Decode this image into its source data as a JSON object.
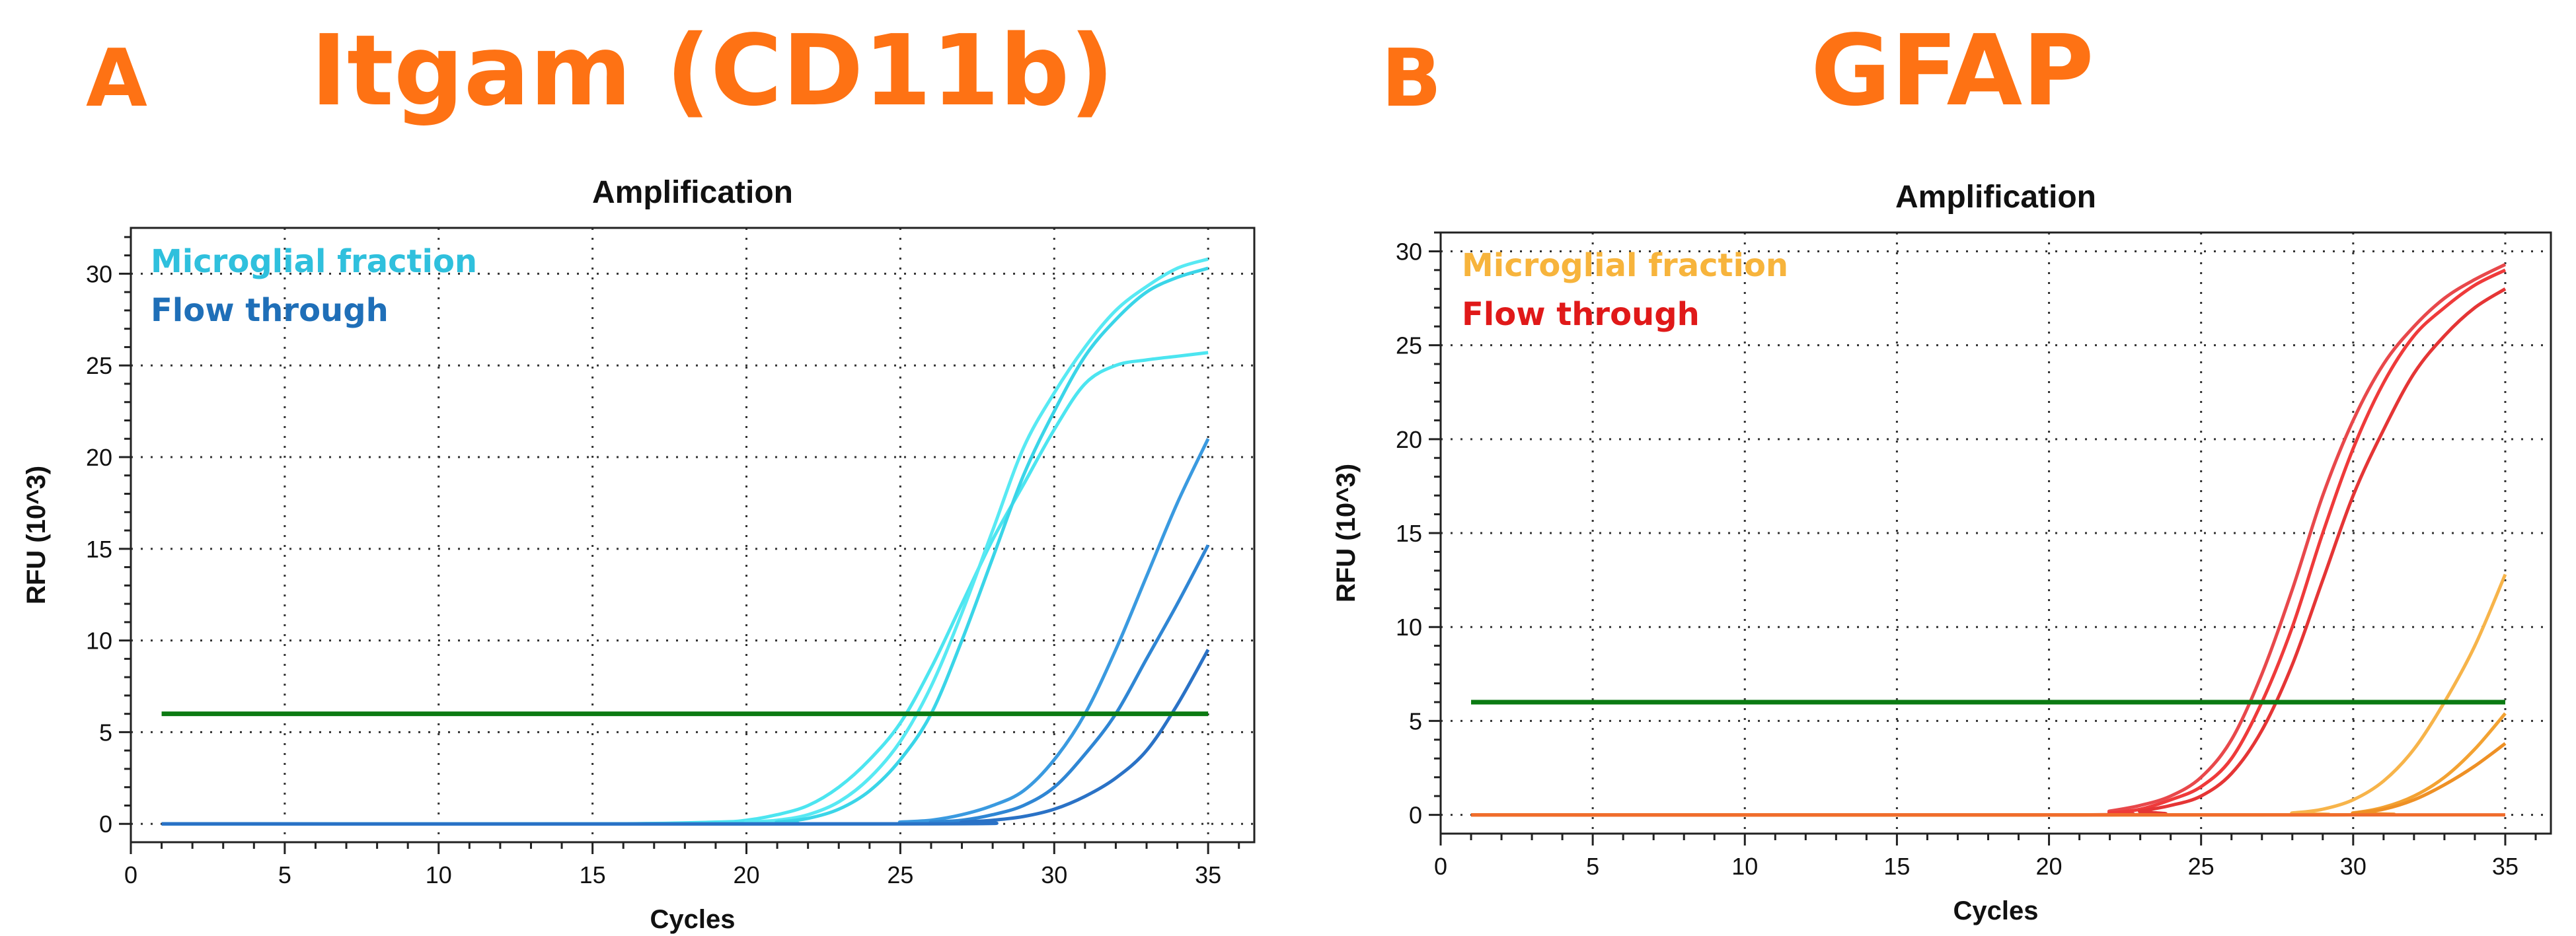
{
  "panels": [
    {
      "letter": "A",
      "title": "Itgam (CD11b)",
      "title_color": "#fe7214",
      "chart_data": {
        "type": "line",
        "title": "Amplification",
        "xlabel": "Cycles",
        "ylabel": "RFU (10^3)",
        "xlim": [
          0,
          36.5
        ],
        "ylim": [
          -1,
          32.5
        ],
        "xticks": [
          0,
          5,
          10,
          15,
          20,
          25,
          30,
          35
        ],
        "yticks": [
          0,
          5,
          10,
          15,
          20,
          25,
          30
        ],
        "grid": true,
        "threshold": {
          "value": 6,
          "x": [
            1,
            35
          ],
          "color": "#0b7a12"
        },
        "legend": [
          {
            "label": "Microglial fraction",
            "color": "#2fc0dd"
          },
          {
            "label": "Flow through",
            "color": "#1f6fb8"
          }
        ],
        "series": [
          {
            "group": 0,
            "color": "#4ce5f0",
            "x": [
              1,
              15,
              19,
              20,
              21,
              22,
              23,
              24,
              25,
              26,
              27,
              28,
              29,
              30,
              31,
              32,
              33,
              34,
              35
            ],
            "y": [
              0,
              0,
              0.1,
              0.2,
              0.5,
              1,
              2,
              3.5,
              5.5,
              8.5,
              12,
              15.5,
              18.5,
              21.5,
              24,
              25,
              25.3,
              25.5,
              25.7
            ]
          },
          {
            "group": 0,
            "color": "#57e9f3",
            "x": [
              1,
              19,
              20,
              21,
              22,
              23,
              24,
              25,
              26,
              27,
              28,
              29,
              30,
              31,
              32,
              33,
              34,
              35
            ],
            "y": [
              0,
              0,
              0.1,
              0.2,
              0.5,
              1.2,
              2.5,
              4.5,
              7.5,
              11.5,
              16,
              20.5,
              23.5,
              26,
              28,
              29.3,
              30.3,
              30.8
            ]
          },
          {
            "group": 0,
            "color": "#3ad5e8",
            "x": [
              1,
              20,
              21,
              22,
              23,
              24,
              25,
              26,
              27,
              28,
              29,
              30,
              31,
              32,
              33,
              34,
              35
            ],
            "y": [
              0,
              0,
              0.1,
              0.3,
              0.8,
              1.8,
              3.5,
              6,
              10,
              14.5,
              19,
              22.5,
              25.5,
              27.5,
              29,
              29.8,
              30.3
            ]
          },
          {
            "group": 1,
            "color": "#3a9ae0",
            "x": [
              1,
              24,
              25,
              26,
              27,
              28,
              29,
              30,
              31,
              32,
              33,
              34,
              35
            ],
            "y": [
              0,
              0,
              0.1,
              0.2,
              0.5,
              1,
              1.8,
              3.5,
              6,
              9.5,
              13.5,
              17.5,
              21
            ]
          },
          {
            "group": 1,
            "color": "#2f86d4",
            "x": [
              1,
              25,
              26,
              27,
              28,
              29,
              30,
              31,
              32,
              33,
              34,
              35
            ],
            "y": [
              0,
              0,
              0.1,
              0.2,
              0.5,
              1,
              2,
              3.8,
              6,
              9,
              12,
              15.2
            ]
          },
          {
            "group": 1,
            "color": "#2a72c6",
            "x": [
              1,
              26,
              27,
              28,
              29,
              30,
              31,
              32,
              33,
              34,
              35
            ],
            "y": [
              0,
              0,
              0.1,
              0.2,
              0.4,
              0.8,
              1.5,
              2.5,
              4,
              6.5,
              9.5
            ]
          }
        ]
      }
    },
    {
      "letter": "B",
      "title": "GFAP",
      "title_color": "#fe7214",
      "chart_data": {
        "type": "line",
        "title": "Amplification",
        "xlabel": "Cycles",
        "ylabel": "RFU (10^3)",
        "xlim": [
          0,
          36.5
        ],
        "ylim": [
          -1,
          31
        ],
        "xticks": [
          0,
          5,
          10,
          15,
          20,
          25,
          30,
          35
        ],
        "yticks": [
          0,
          5,
          10,
          15,
          20,
          25,
          30
        ],
        "grid": true,
        "threshold": {
          "value": 6,
          "x": [
            1,
            35
          ],
          "color": "#0b7a12"
        },
        "legend": [
          {
            "label": "Microglial fraction",
            "color": "#f7b43c"
          },
          {
            "label": "Flow through",
            "color": "#e01919"
          }
        ],
        "series": [
          {
            "group": 1,
            "color": "#e8484b",
            "x": [
              1,
              21,
              22,
              23,
              24,
              25,
              26,
              27,
              28,
              29,
              30,
              31,
              32,
              33,
              34,
              35
            ],
            "y": [
              0,
              0,
              0.2,
              0.5,
              1,
              2,
              4,
              7.5,
              12,
              17,
              21,
              24,
              26,
              27.5,
              28.5,
              29.3
            ]
          },
          {
            "group": 1,
            "color": "#ef3a3a",
            "x": [
              1,
              21,
              22,
              23,
              24,
              25,
              26,
              27,
              28,
              29,
              30,
              31,
              32,
              33,
              34,
              35
            ],
            "y": [
              0,
              0,
              0.1,
              0.3,
              0.8,
              1.5,
              3,
              6,
              10,
              15,
              19.5,
              23,
              25.5,
              27,
              28.2,
              29
            ]
          },
          {
            "group": 1,
            "color": "#e53535",
            "x": [
              1,
              22,
              23,
              24,
              25,
              26,
              27,
              28,
              29,
              30,
              31,
              32,
              33,
              34,
              35
            ],
            "y": [
              0,
              0,
              0.2,
              0.5,
              1,
              2.2,
              4.5,
              8,
              12.5,
              17,
              20.5,
              23.5,
              25.5,
              27,
              28
            ]
          },
          {
            "group": 0,
            "color": "#f7b44a",
            "x": [
              1,
              27,
              28,
              29,
              30,
              31,
              32,
              33,
              34,
              35
            ],
            "y": [
              0,
              0,
              0.1,
              0.3,
              0.8,
              1.8,
              3.5,
              6,
              9,
              12.8
            ]
          },
          {
            "group": 0,
            "color": "#f3a232",
            "x": [
              1,
              29,
              30,
              31,
              32,
              33,
              34,
              35
            ],
            "y": [
              0,
              0,
              0.1,
              0.4,
              1,
              2,
              3.5,
              5.4
            ]
          },
          {
            "group": 0,
            "color": "#ee9025",
            "x": [
              1,
              29,
              30,
              31,
              32,
              33,
              34,
              35
            ],
            "y": [
              0,
              0,
              0.1,
              0.3,
              0.8,
              1.6,
              2.6,
              3.8
            ]
          },
          {
            "group": 2,
            "color": "#f06c2c",
            "x": [
              1,
              35
            ],
            "y": [
              0,
              0
            ]
          }
        ]
      }
    }
  ]
}
